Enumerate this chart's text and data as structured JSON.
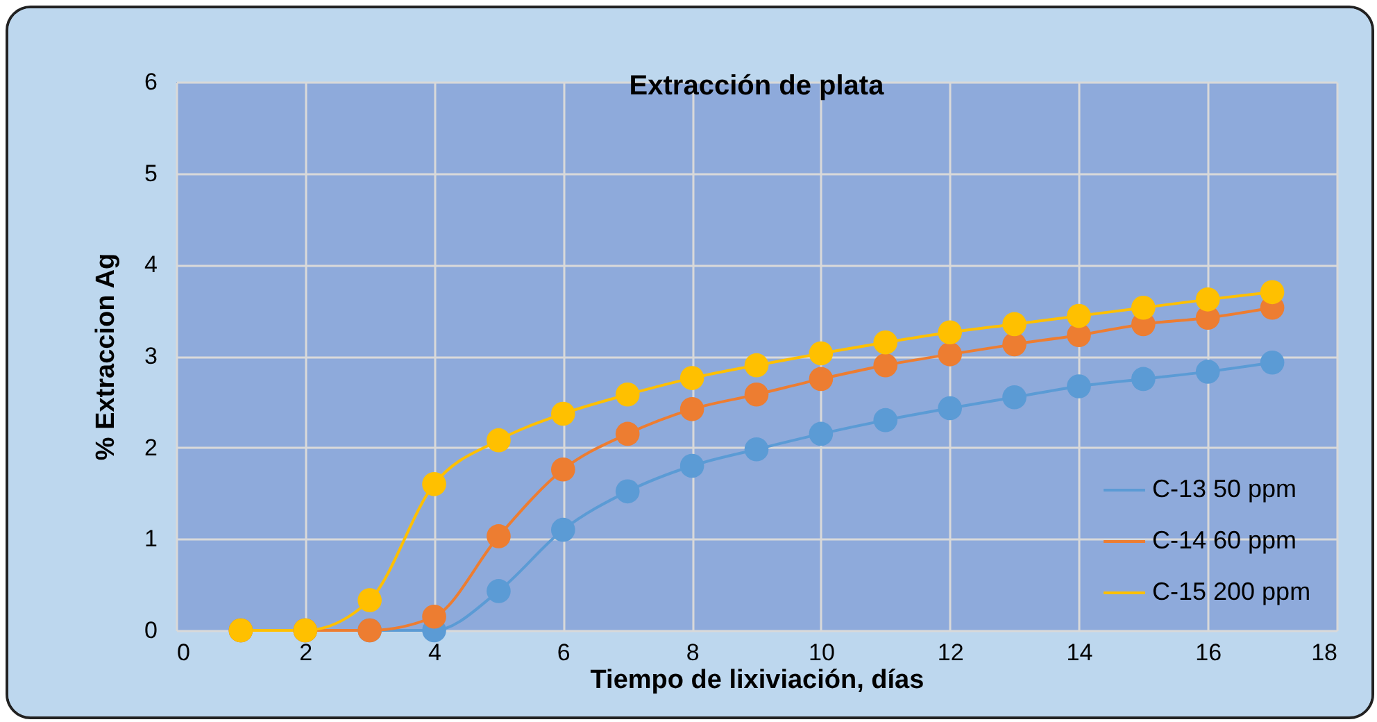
{
  "chart_data": {
    "type": "line",
    "title": "Extracción de plata",
    "xlabel": "Tiempo de lixiviación, días",
    "ylabel": "% Extraccion Ag",
    "x": [
      1,
      2,
      3,
      4,
      5,
      6,
      7,
      8,
      9,
      10,
      11,
      12,
      13,
      14,
      15,
      16,
      17
    ],
    "series": [
      {
        "name": "C-13 50 ppm",
        "color": "#5b9bd5",
        "values": [
          0,
          0,
          0,
          0,
          0.43,
          1.1,
          1.52,
          1.8,
          1.98,
          2.15,
          2.3,
          2.43,
          2.55,
          2.67,
          2.75,
          2.83,
          2.93
        ]
      },
      {
        "name": "C-14 60 ppm",
        "color": "#ed7d31",
        "values": [
          0,
          0,
          0,
          0.15,
          1.03,
          1.76,
          2.15,
          2.42,
          2.58,
          2.75,
          2.9,
          3.02,
          3.13,
          3.23,
          3.35,
          3.42,
          3.53
        ]
      },
      {
        "name": "C-15 200 ppm",
        "color": "#ffc000",
        "values": [
          0,
          0,
          0.33,
          1.6,
          2.08,
          2.37,
          2.58,
          2.76,
          2.9,
          3.03,
          3.15,
          3.26,
          3.35,
          3.44,
          3.53,
          3.62,
          3.7
        ]
      }
    ],
    "xlim": [
      0,
      18
    ],
    "xticks": [
      0,
      2,
      4,
      6,
      8,
      10,
      12,
      14,
      16,
      18
    ],
    "ylim": [
      0,
      6
    ],
    "yticks": [
      0,
      1,
      2,
      3,
      4,
      5,
      6
    ],
    "grid": true,
    "legend": "bottom right",
    "marker": "circle",
    "line_style": "solid"
  }
}
